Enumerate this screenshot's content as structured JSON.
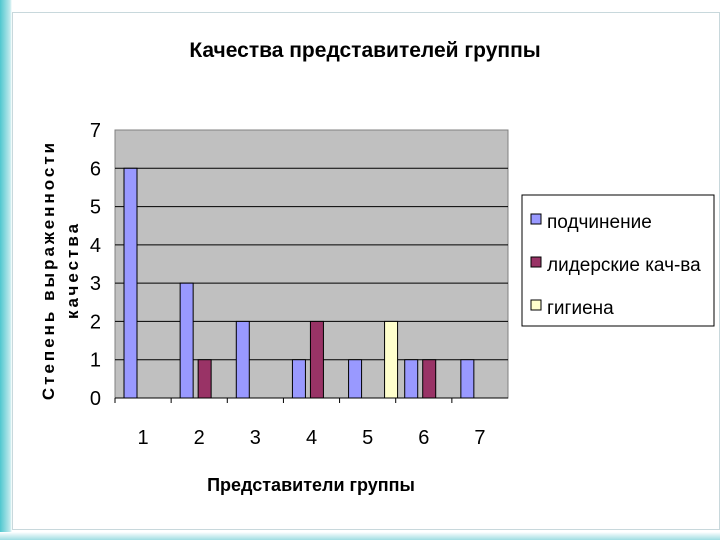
{
  "chart_data": {
    "type": "bar",
    "title": "Качества представителей группы",
    "xlabel": "Представители группы",
    "ylabel": [
      "Степень выраженности",
      "качества"
    ],
    "categories": [
      "1",
      "2",
      "3",
      "4",
      "5",
      "6",
      "7"
    ],
    "ylim": [
      0,
      7
    ],
    "yticks": [
      "0",
      "1",
      "2",
      "3",
      "4",
      "5",
      "6",
      "7"
    ],
    "grid": true,
    "legend_position": "right",
    "plot_background": "#c0c0c0",
    "series": [
      {
        "name": "подчинение",
        "color": "#9999ff",
        "values": [
          6,
          3,
          2,
          1,
          1,
          1,
          1
        ]
      },
      {
        "name": "лидерские кач-ва",
        "color": "#993366",
        "values": [
          0,
          1,
          0,
          2,
          0,
          1,
          0
        ]
      },
      {
        "name": "гигиена",
        "color": "#ffffcc",
        "values": [
          0,
          0,
          0,
          0,
          2,
          0,
          0
        ]
      }
    ]
  }
}
